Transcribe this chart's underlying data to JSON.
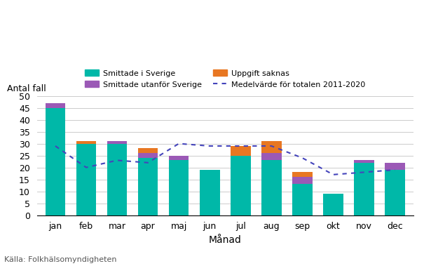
{
  "months": [
    "jan",
    "feb",
    "mar",
    "apr",
    "maj",
    "jun",
    "jul",
    "aug",
    "sep",
    "okt",
    "nov",
    "dec"
  ],
  "smittade_sverige": [
    45,
    30,
    30,
    24,
    23,
    19,
    25,
    23,
    13,
    9,
    22,
    19
  ],
  "smittade_utanfor": [
    2,
    0,
    1,
    2,
    2,
    0,
    0,
    3,
    3,
    0,
    1,
    3
  ],
  "uppgift_saknas": [
    0,
    1,
    0,
    2,
    0,
    0,
    4,
    5,
    2,
    0,
    0,
    0
  ],
  "medelvarde": [
    29,
    20,
    23,
    22,
    30,
    29,
    29,
    29,
    24,
    17,
    18,
    19
  ],
  "color_sverige": "#00B8A8",
  "color_utanfor": "#9B59B6",
  "color_uppgift": "#E87722",
  "color_medelvarde": "#4444BB",
  "ylabel": "Antal fall",
  "xlabel": "Månad",
  "ylim": [
    0,
    50
  ],
  "yticks": [
    0,
    5,
    10,
    15,
    20,
    25,
    30,
    35,
    40,
    45,
    50
  ],
  "legend_sverige": "Smittade i Sverige",
  "legend_utanfor": "Smittade utanför Sverige",
  "legend_uppgift": "Uppgift saknas",
  "legend_medelvarde": "Medelvärde för totalen 2011-2020",
  "source_text": "Källa: Folkhälsomyndigheten",
  "background_color": "#FFFFFF"
}
